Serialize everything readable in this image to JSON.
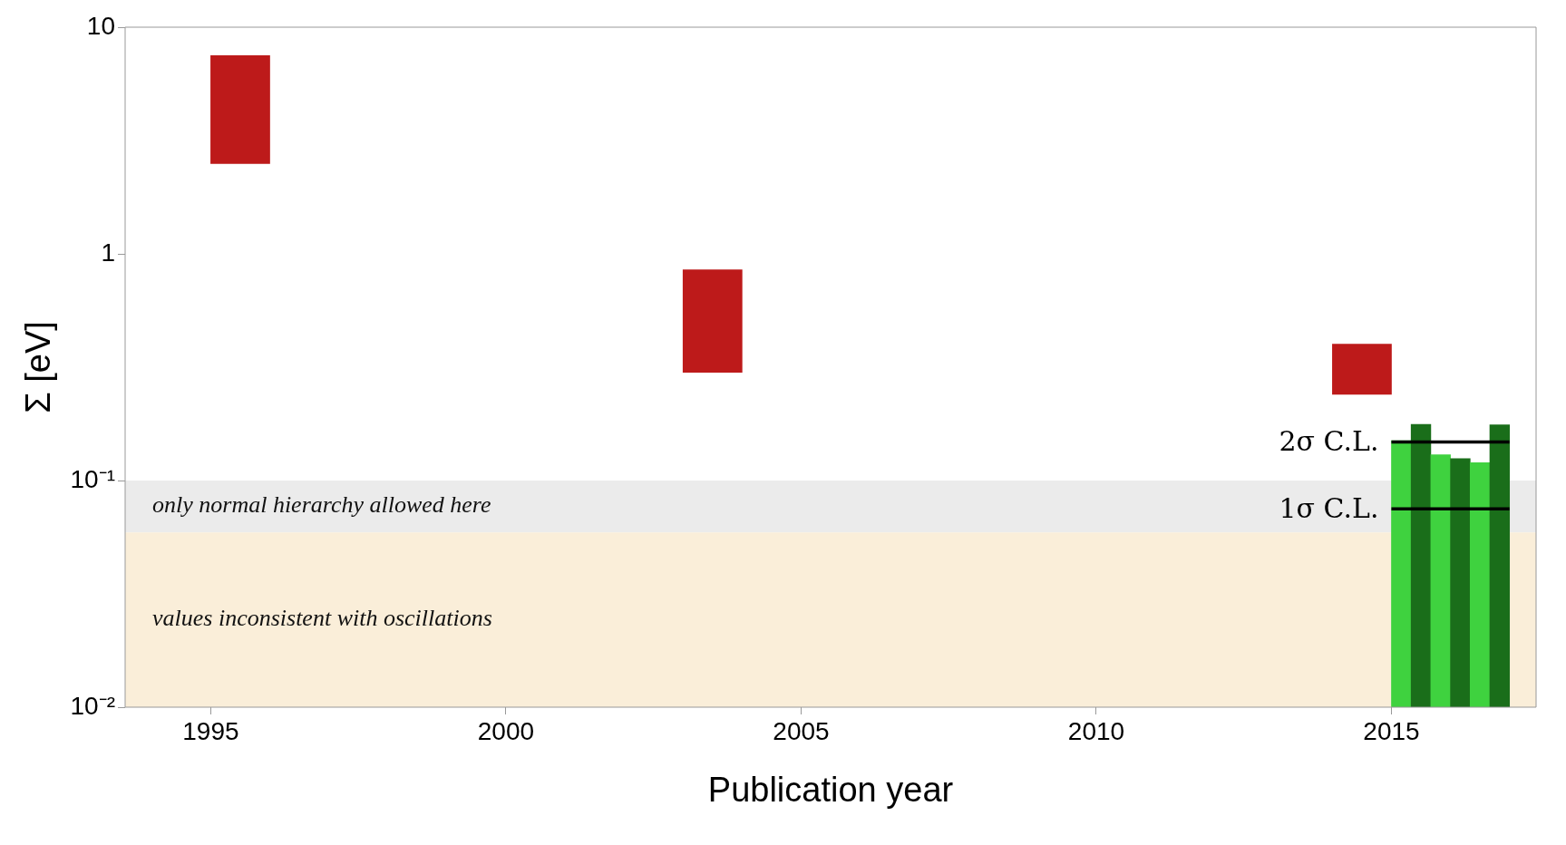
{
  "chart_data": {
    "type": "bar",
    "xlabel": "Publication year",
    "ylabel": "Σ [eV]",
    "log": "y",
    "xlim": [
      1993.55,
      2017.45
    ],
    "xticks": [
      1995,
      2000,
      2005,
      2010,
      2015
    ],
    "ylim": [
      0.01,
      10
    ],
    "yticks": [
      {
        "value": 0.01,
        "label": "10⁻²"
      },
      {
        "value": 0.1,
        "label": "10⁻¹"
      },
      1,
      10
    ],
    "series": [
      {
        "color": "#bd1a1a",
        "x": [
          1995.5,
          2003.5,
          2014.5
        ],
        "base": [
          2.5,
          0.3,
          0.24
        ],
        "values": [
          5,
          0.55,
          0.16
        ]
      },
      {
        "colors": [
          "#3fd23f",
          "#1a6e1a",
          "#3fd23f",
          "#1a6e1a",
          "#3fd23f",
          "#1a6e1a"
        ],
        "x": [
          2015.1667,
          2015.5,
          2015.8333,
          2016.1667,
          2016.5,
          2016.8333
        ],
        "values": [
          0.15,
          0.177,
          0.13,
          0.125,
          0.12,
          0.176
        ]
      },
      {
        "type": "line",
        "name": "2σ C.L.",
        "color": "#000000",
        "x": [
          2015,
          2017
        ],
        "values": [
          0.148,
          0.148
        ]
      },
      {
        "type": "line",
        "name": "1σ C.L.",
        "color": "#000000",
        "x": [
          2015,
          2017
        ],
        "values": [
          0.075,
          0.075
        ]
      }
    ],
    "bands": [
      {
        "axis": "y",
        "from": 0.059,
        "to": 0.1,
        "label": "only normal hierarchy allowed here",
        "color": "#ebebeb"
      },
      {
        "axis": "y",
        "from": 0.01,
        "to": 0.059,
        "label": "values inconsistent with oscillations",
        "color": "#faeed9"
      }
    ]
  }
}
